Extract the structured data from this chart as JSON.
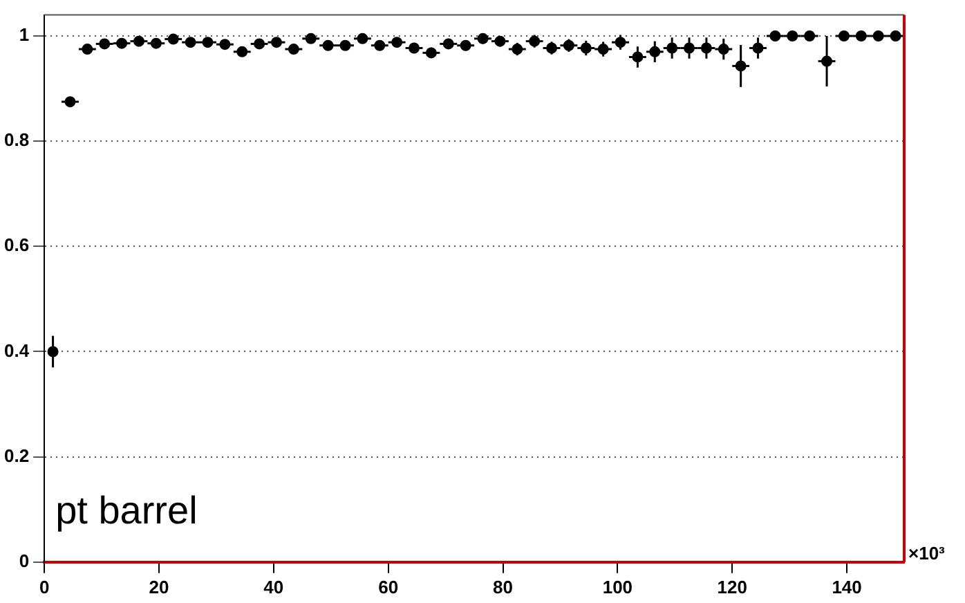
{
  "chart_data": {
    "type": "scatter",
    "xlabel": "×10³",
    "annotations": [
      {
        "text": "pt barrel"
      }
    ],
    "x": [
      1.5,
      4.5,
      7.5,
      10.5,
      13.5,
      16.5,
      19.5,
      22.5,
      25.5,
      28.5,
      31.5,
      34.5,
      37.5,
      40.5,
      43.5,
      46.5,
      49.5,
      52.5,
      55.5,
      58.5,
      61.5,
      64.5,
      67.5,
      70.5,
      73.5,
      76.5,
      79.5,
      82.5,
      85.5,
      88.5,
      91.5,
      94.5,
      97.5,
      100.5,
      103.5,
      106.5,
      109.5,
      112.5,
      115.5,
      118.5,
      121.5,
      124.5,
      127.5,
      130.5,
      133.5,
      136.5,
      139.5,
      142.5,
      145.5,
      148.5
    ],
    "series": [
      {
        "color": "#000000",
        "values": [
          0.4,
          0.875,
          0.975,
          0.985,
          0.986,
          0.99,
          0.986,
          0.994,
          0.988,
          0.988,
          0.984,
          0.97,
          0.985,
          0.988,
          0.975,
          0.995,
          0.982,
          0.982,
          0.995,
          0.982,
          0.988,
          0.977,
          0.968,
          0.985,
          0.982,
          0.995,
          0.99,
          0.975,
          0.99,
          0.977,
          0.982,
          0.977,
          0.975,
          0.988,
          0.96,
          0.97,
          0.977,
          0.977,
          0.977,
          0.975,
          0.943,
          0.977,
          1,
          1,
          1,
          0.952,
          1,
          1,
          1,
          1
        ],
        "errors": [
          0.03,
          0.005,
          0.005,
          0.005,
          0.005,
          0.005,
          0.005,
          0.005,
          0.005,
          0.005,
          0.005,
          0.008,
          0.008,
          0.008,
          0.008,
          0.008,
          0.008,
          0.008,
          0.008,
          0.008,
          0.008,
          0.01,
          0.01,
          0.01,
          0.01,
          0.01,
          0.01,
          0.012,
          0.012,
          0.012,
          0.012,
          0.014,
          0.014,
          0.014,
          0.02,
          0.02,
          0.02,
          0.02,
          0.02,
          0.02,
          0.04,
          0.02,
          null,
          null,
          null,
          0.048,
          null,
          null,
          null,
          null
        ],
        "xerrors": [
          null,
          1.5,
          1.5,
          1.5,
          1.5,
          1.5,
          1.5,
          1.5,
          1.5,
          1.5,
          1.5,
          1.5,
          1.5,
          1.5,
          1.5,
          1.5,
          1.5,
          1.5,
          1.5,
          1.5,
          1.5,
          1.5,
          1.5,
          1.5,
          1.5,
          1.5,
          1.5,
          1.5,
          1.5,
          1.5,
          1.5,
          1.5,
          1.5,
          1.5,
          1.5,
          1.5,
          1.5,
          1.5,
          1.5,
          1.5,
          1.5,
          1.5,
          1.5,
          1.5,
          1.5,
          1.5,
          1.5,
          1.5,
          1.5,
          1.5
        ]
      }
    ],
    "xlim": [
      0,
      150
    ],
    "xticks": [
      0,
      20,
      40,
      60,
      80,
      100,
      120,
      140
    ],
    "ylim": [
      0,
      1.04
    ],
    "yticks": [
      0,
      0.2,
      0.4,
      0.6,
      0.8,
      1
    ],
    "grid": "y",
    "marker": "circle",
    "legend": false
  }
}
